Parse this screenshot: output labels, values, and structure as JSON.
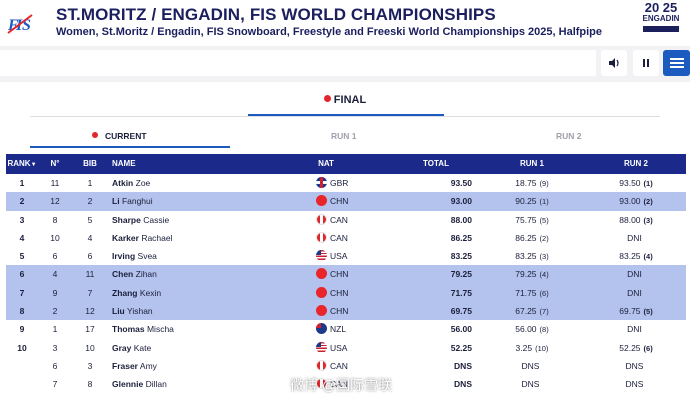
{
  "header": {
    "title": "ST.MORITZ / ENGADIN, FIS WORLD CHAMPIONSHIPS",
    "subtitle": "Women, St.Moritz / Engadin, FIS Snowboard, Freestyle and Freeski World Championships 2025, Halfpipe",
    "logo_year_top": "20 25",
    "logo_city": "ENGADIN"
  },
  "toolbar": {
    "sound_icon": "speaker-icon",
    "pause_icon": "pause-icon",
    "menu_icon": "hamburger-icon"
  },
  "tabs": {
    "final": "FINAL",
    "current": "CURRENT",
    "run1": "RUN 1",
    "run2": "RUN 2"
  },
  "table": {
    "columns": [
      "RANK",
      "N°",
      "BIB",
      "NAME",
      "NAT",
      "TOTAL",
      "RUN 1",
      "RUN 2"
    ],
    "rows": [
      {
        "rank": "1",
        "n": "11",
        "bib": "1",
        "last": "Atkin",
        "first": "Zoe",
        "nat": "GBR",
        "total": "93.50",
        "run1": "18.75",
        "run1_pos": "(9)",
        "run2": "93.50",
        "run2_pos": "(1)",
        "hl": false
      },
      {
        "rank": "2",
        "n": "12",
        "bib": "2",
        "last": "Li",
        "first": "Fanghui",
        "nat": "CHN",
        "total": "93.00",
        "run1": "90.25",
        "run1_pos": "(1)",
        "run2": "93.00",
        "run2_pos": "(2)",
        "hl": true
      },
      {
        "rank": "3",
        "n": "8",
        "bib": "5",
        "last": "Sharpe",
        "first": "Cassie",
        "nat": "CAN",
        "total": "88.00",
        "run1": "75.75",
        "run1_pos": "(5)",
        "run2": "88.00",
        "run2_pos": "(3)",
        "hl": false
      },
      {
        "rank": "4",
        "n": "10",
        "bib": "4",
        "last": "Karker",
        "first": "Rachael",
        "nat": "CAN",
        "total": "86.25",
        "run1": "86.25",
        "run1_pos": "(2)",
        "run2": "DNI",
        "run2_pos": "",
        "hl": false
      },
      {
        "rank": "5",
        "n": "6",
        "bib": "6",
        "last": "Irving",
        "first": "Svea",
        "nat": "USA",
        "total": "83.25",
        "run1": "83.25",
        "run1_pos": "(3)",
        "run2": "83.25",
        "run2_pos": "(4)",
        "hl": false
      },
      {
        "rank": "6",
        "n": "4",
        "bib": "11",
        "last": "Chen",
        "first": "Zihan",
        "nat": "CHN",
        "total": "79.25",
        "run1": "79.25",
        "run1_pos": "(4)",
        "run2": "DNI",
        "run2_pos": "",
        "hl": true
      },
      {
        "rank": "7",
        "n": "9",
        "bib": "7",
        "last": "Zhang",
        "first": "Kexin",
        "nat": "CHN",
        "total": "71.75",
        "run1": "71.75",
        "run1_pos": "(6)",
        "run2": "DNI",
        "run2_pos": "",
        "hl": true
      },
      {
        "rank": "8",
        "n": "2",
        "bib": "12",
        "last": "Liu",
        "first": "Yishan",
        "nat": "CHN",
        "total": "69.75",
        "run1": "67.25",
        "run1_pos": "(7)",
        "run2": "69.75",
        "run2_pos": "(5)",
        "hl": true
      },
      {
        "rank": "9",
        "n": "1",
        "bib": "17",
        "last": "Thomas",
        "first": "Mischa",
        "nat": "NZL",
        "total": "56.00",
        "run1": "56.00",
        "run1_pos": "(8)",
        "run2": "DNI",
        "run2_pos": "",
        "hl": false
      },
      {
        "rank": "10",
        "n": "3",
        "bib": "10",
        "last": "Gray",
        "first": "Kate",
        "nat": "USA",
        "total": "52.25",
        "run1": "3.25",
        "run1_pos": "(10)",
        "run2": "52.25",
        "run2_pos": "(6)",
        "hl": false
      },
      {
        "rank": "",
        "n": "6",
        "bib": "3",
        "last": "Fraser",
        "first": "Amy",
        "nat": "CAN",
        "total": "DNS",
        "run1": "DNS",
        "run1_pos": "",
        "run2": "DNS",
        "run2_pos": "",
        "hl": false
      },
      {
        "rank": "",
        "n": "7",
        "bib": "8",
        "last": "Glennie",
        "first": "Dillan",
        "nat": "CAN",
        "total": "DNS",
        "run1": "DNS",
        "run1_pos": "",
        "run2": "DNS",
        "run2_pos": "",
        "hl": false
      }
    ]
  },
  "watermark": "微博 @国际雪联"
}
